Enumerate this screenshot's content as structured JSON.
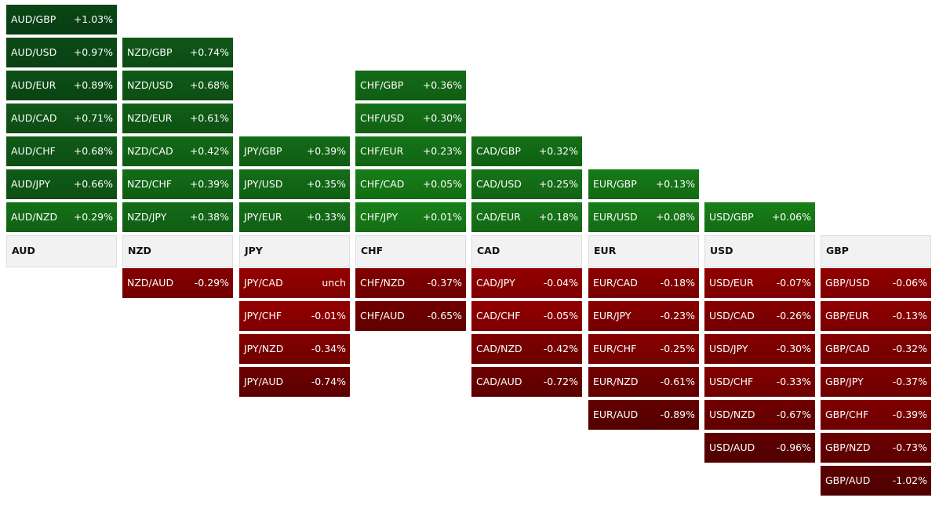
{
  "columns": [
    {
      "header": "AUD",
      "up": [
        {
          "pair": "AUD/GBP",
          "change": "+1.03%"
        },
        {
          "pair": "AUD/USD",
          "change": "+0.97%"
        },
        {
          "pair": "AUD/EUR",
          "change": "+0.89%"
        },
        {
          "pair": "AUD/CAD",
          "change": "+0.71%"
        },
        {
          "pair": "AUD/CHF",
          "change": "+0.68%"
        },
        {
          "pair": "AUD/JPY",
          "change": "+0.66%"
        },
        {
          "pair": "AUD/NZD",
          "change": "+0.29%"
        }
      ],
      "down": []
    },
    {
      "header": "NZD",
      "up": [
        {
          "pair": "NZD/GBP",
          "change": "+0.74%"
        },
        {
          "pair": "NZD/USD",
          "change": "+0.68%"
        },
        {
          "pair": "NZD/EUR",
          "change": "+0.61%"
        },
        {
          "pair": "NZD/CAD",
          "change": "+0.42%"
        },
        {
          "pair": "NZD/CHF",
          "change": "+0.39%"
        },
        {
          "pair": "NZD/JPY",
          "change": "+0.38%"
        }
      ],
      "down": [
        {
          "pair": "NZD/AUD",
          "change": "-0.29%"
        }
      ]
    },
    {
      "header": "JPY",
      "up": [
        {
          "pair": "JPY/GBP",
          "change": "+0.39%"
        },
        {
          "pair": "JPY/USD",
          "change": "+0.35%"
        },
        {
          "pair": "JPY/EUR",
          "change": "+0.33%"
        }
      ],
      "down": [
        {
          "pair": "JPY/CAD",
          "change": "unch"
        },
        {
          "pair": "JPY/CHF",
          "change": "-0.01%"
        },
        {
          "pair": "JPY/NZD",
          "change": "-0.34%"
        },
        {
          "pair": "JPY/AUD",
          "change": "-0.74%"
        }
      ]
    },
    {
      "header": "CHF",
      "up": [
        {
          "pair": "CHF/GBP",
          "change": "+0.36%"
        },
        {
          "pair": "CHF/USD",
          "change": "+0.30%"
        },
        {
          "pair": "CHF/EUR",
          "change": "+0.23%"
        },
        {
          "pair": "CHF/CAD",
          "change": "+0.05%"
        },
        {
          "pair": "CHF/JPY",
          "change": "+0.01%"
        }
      ],
      "down": [
        {
          "pair": "CHF/NZD",
          "change": "-0.37%"
        },
        {
          "pair": "CHF/AUD",
          "change": "-0.65%"
        }
      ]
    },
    {
      "header": "CAD",
      "up": [
        {
          "pair": "CAD/GBP",
          "change": "+0.32%"
        },
        {
          "pair": "CAD/USD",
          "change": "+0.25%"
        },
        {
          "pair": "CAD/EUR",
          "change": "+0.18%"
        }
      ],
      "down": [
        {
          "pair": "CAD/JPY",
          "change": "-0.04%"
        },
        {
          "pair": "CAD/CHF",
          "change": "-0.05%"
        },
        {
          "pair": "CAD/NZD",
          "change": "-0.42%"
        },
        {
          "pair": "CAD/AUD",
          "change": "-0.72%"
        }
      ]
    },
    {
      "header": "EUR",
      "up": [
        {
          "pair": "EUR/GBP",
          "change": "+0.13%"
        },
        {
          "pair": "EUR/USD",
          "change": "+0.08%"
        }
      ],
      "down": [
        {
          "pair": "EUR/CAD",
          "change": "-0.18%"
        },
        {
          "pair": "EUR/JPY",
          "change": "-0.23%"
        },
        {
          "pair": "EUR/CHF",
          "change": "-0.25%"
        },
        {
          "pair": "EUR/NZD",
          "change": "-0.61%"
        },
        {
          "pair": "EUR/AUD",
          "change": "-0.89%"
        }
      ]
    },
    {
      "header": "USD",
      "up": [
        {
          "pair": "USD/GBP",
          "change": "+0.06%"
        }
      ],
      "down": [
        {
          "pair": "USD/EUR",
          "change": "-0.07%"
        },
        {
          "pair": "USD/CAD",
          "change": "-0.26%"
        },
        {
          "pair": "USD/JPY",
          "change": "-0.30%"
        },
        {
          "pair": "USD/CHF",
          "change": "-0.33%"
        },
        {
          "pair": "USD/NZD",
          "change": "-0.67%"
        },
        {
          "pair": "USD/AUD",
          "change": "-0.96%"
        }
      ]
    },
    {
      "header": "GBP",
      "up": [],
      "down": [
        {
          "pair": "GBP/USD",
          "change": "-0.06%"
        },
        {
          "pair": "GBP/EUR",
          "change": "-0.13%"
        },
        {
          "pair": "GBP/CAD",
          "change": "-0.32%"
        },
        {
          "pair": "GBP/JPY",
          "change": "-0.37%"
        },
        {
          "pair": "GBP/CHF",
          "change": "-0.39%"
        },
        {
          "pair": "GBP/NZD",
          "change": "-0.73%"
        },
        {
          "pair": "GBP/AUD",
          "change": "-1.02%"
        }
      ]
    }
  ]
}
